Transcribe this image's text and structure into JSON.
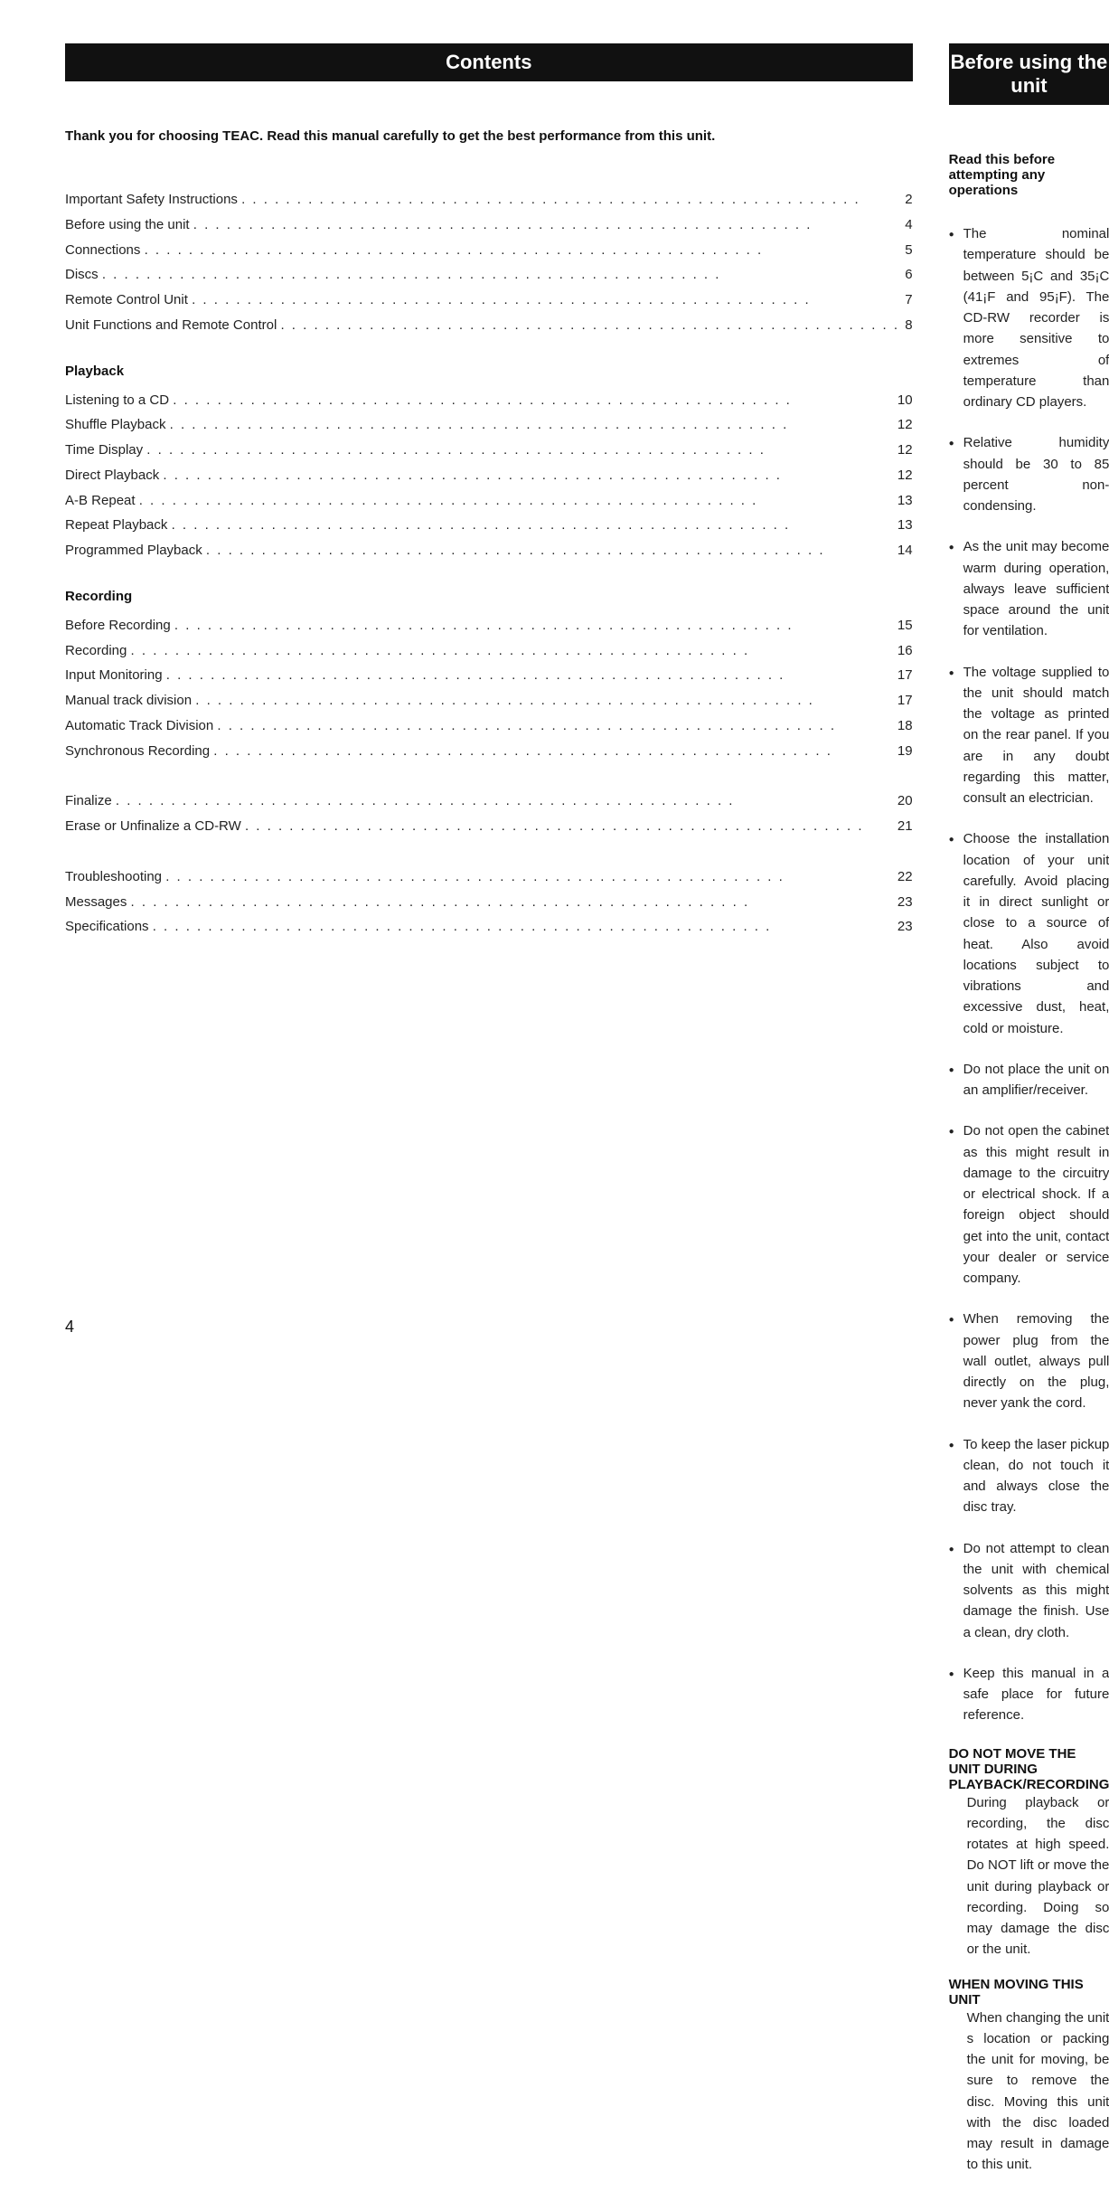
{
  "headers": {
    "left": "Contents",
    "right": "Before using the unit"
  },
  "intro": "Thank you for choosing TEAC. Read this manual carefully to get the best performance from this unit.",
  "toc": {
    "group1": [
      {
        "label": "Important Safety Instructions",
        "page": "2"
      },
      {
        "label": "Before using the unit",
        "page": "4"
      },
      {
        "label": "Connections",
        "page": "5"
      },
      {
        "label": "Discs",
        "page": "6"
      },
      {
        "label": "Remote Control Unit",
        "page": "7"
      },
      {
        "label": "Unit Functions and Remote Control",
        "page": "8"
      }
    ],
    "playback_heading": "Playback",
    "playback": [
      {
        "label": "Listening to a CD",
        "page": "10"
      },
      {
        "label": "Shuffle Playback",
        "page": "12"
      },
      {
        "label": "Time Display",
        "page": "12"
      },
      {
        "label": "Direct Playback",
        "page": "12"
      },
      {
        "label": "A-B Repeat",
        "page": "13"
      },
      {
        "label": "Repeat Playback",
        "page": "13"
      },
      {
        "label": "Programmed Playback",
        "page": "14"
      }
    ],
    "recording_heading": "Recording",
    "recording": [
      {
        "label": "Before Recording",
        "page": "15"
      },
      {
        "label": "Recording",
        "page": "16"
      },
      {
        "label": "Input Monitoring",
        "page": "17"
      },
      {
        "label": "Manual track division",
        "page": "17"
      },
      {
        "label": "Automatic Track Division",
        "page": "18"
      },
      {
        "label": "Synchronous Recording",
        "page": "19"
      }
    ],
    "group4": [
      {
        "label": "Finalize",
        "page": "20"
      },
      {
        "label": "Erase or Unfinalize a CD-RW",
        "page": "21"
      }
    ],
    "group5": [
      {
        "label": "Troubleshooting",
        "page": "22"
      },
      {
        "label": "Messages",
        "page": "23"
      },
      {
        "label": "Specifications",
        "page": "23"
      }
    ]
  },
  "right": {
    "heading": "Read this before attempting any operations",
    "bullets": [
      "The nominal temperature should be between 5¡C and 35¡C (41¡F and 95¡F). The CD-RW recorder is more sensitive to extremes of temperature than ordinary CD players.",
      "Relative humidity should be 30 to 85 percent non-condensing.",
      "As the unit may become warm during operation, always leave sufficient space around the unit for ventilation.",
      "The voltage supplied to the unit should match the voltage as printed on the rear panel. If you are in any doubt regarding this matter, consult an electrician.",
      "Choose the installation location of your unit carefully. Avoid placing it in direct sunlight or close to a source of heat. Also avoid locations subject to vibrations and excessive dust, heat, cold or moisture.",
      "Do not place the unit on an amplifier/receiver.",
      "Do not open the cabinet as this might result in damage to the circuitry or electrical shock. If a foreign object should get into the unit, contact your dealer or service company.",
      "When removing the power plug from the wall outlet, always pull directly on the plug, never yank the cord.",
      "To keep the laser pickup clean, do not touch it and always close the disc tray.",
      "Do not attempt to clean the unit with chemical solvents as this might damage the finish. Use a clean, dry cloth.",
      "Keep this manual in a safe place for future reference."
    ],
    "warn1_title": "DO NOT MOVE THE UNIT DURING PLAYBACK/RECORDING",
    "warn1_body": "During playback or recording, the disc rotates at high speed. Do NOT lift or move the unit during playback or recording. Doing so may damage the disc or the unit.",
    "warn2_title": "WHEN MOVING THIS UNIT",
    "warn2_body": "When changing the unit s location or packing the unit for moving, be sure to remove the disc. Moving this unit with the disc loaded may result in damage to this unit."
  },
  "page_number": "4"
}
